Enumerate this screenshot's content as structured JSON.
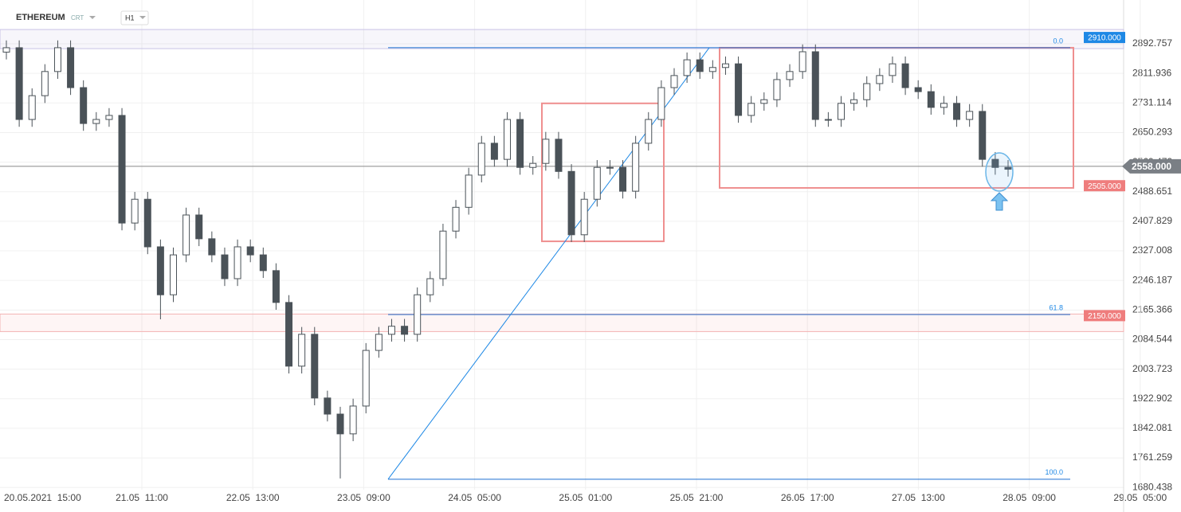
{
  "header": {
    "symbol": "ETHEREUM",
    "type": "CRT",
    "interval": "H1"
  },
  "chart_data": {
    "type": "candlestick",
    "open": [
      2870,
      2882,
      2686,
      2751,
      2817,
      2882,
      2773,
      2675,
      2686,
      2697,
      2403,
      2468,
      2338,
      2207,
      2316,
      2425,
      2360,
      2316,
      2251,
      2338,
      2316,
      2273,
      2186,
      2012,
      2099,
      1925,
      1881,
      1827,
      1903,
      2055,
      2099,
      2121,
      2099,
      2207,
      2251,
      2381,
      2446,
      2534,
      2621,
      2577,
      2686,
      2555,
      2566,
      2632,
      2544,
      2371,
      2468,
      2555,
      2555,
      2490,
      2621,
      2686,
      2773,
      2806,
      2849,
      2817,
      2828,
      2838,
      2697,
      2730,
      2740,
      2795,
      2817,
      2871,
      2686,
      2686,
      2730,
      2740,
      2784,
      2806,
      2838,
      2773,
      2762,
      2719,
      2730,
      2686,
      2708,
      2577,
      2555
    ],
    "high": [
      2902,
      2902,
      2771,
      2837,
      2902,
      2902,
      2793,
      2706,
      2717,
      2717,
      2488,
      2488,
      2358,
      2336,
      2445,
      2445,
      2380,
      2336,
      2358,
      2358,
      2336,
      2293,
      2206,
      2119,
      2119,
      1945,
      1901,
      1923,
      2075,
      2119,
      2141,
      2141,
      2227,
      2271,
      2401,
      2466,
      2554,
      2641,
      2641,
      2706,
      2706,
      2586,
      2652,
      2652,
      2564,
      2488,
      2575,
      2575,
      2575,
      2641,
      2706,
      2793,
      2826,
      2869,
      2869,
      2848,
      2858,
      2858,
      2750,
      2760,
      2815,
      2837,
      2891,
      2891,
      2706,
      2750,
      2760,
      2804,
      2826,
      2858,
      2858,
      2793,
      2782,
      2750,
      2750,
      2728,
      2728,
      2597,
      2575
    ],
    "low": [
      2850,
      2666,
      2666,
      2731,
      2797,
      2753,
      2655,
      2655,
      2666,
      2383,
      2383,
      2318,
      2140,
      2187,
      2296,
      2340,
      2296,
      2231,
      2231,
      2296,
      2253,
      2166,
      1992,
      1992,
      1905,
      1861,
      1705,
      1807,
      1883,
      2035,
      2079,
      2079,
      2079,
      2187,
      2231,
      2361,
      2426,
      2514,
      2557,
      2557,
      2535,
      2535,
      2546,
      2524,
      2351,
      2351,
      2448,
      2535,
      2470,
      2470,
      2601,
      2666,
      2753,
      2786,
      2797,
      2797,
      2808,
      2677,
      2677,
      2710,
      2720,
      2775,
      2797,
      2666,
      2666,
      2666,
      2710,
      2720,
      2764,
      2786,
      2753,
      2742,
      2699,
      2699,
      2666,
      2666,
      2557,
      2535,
      2530
    ],
    "close": [
      2882,
      2686,
      2751,
      2817,
      2882,
      2773,
      2675,
      2686,
      2697,
      2403,
      2468,
      2338,
      2207,
      2316,
      2425,
      2360,
      2316,
      2251,
      2338,
      2316,
      2273,
      2186,
      2012,
      2099,
      1925,
      1881,
      1827,
      1903,
      2055,
      2099,
      2121,
      2099,
      2207,
      2251,
      2381,
      2446,
      2534,
      2621,
      2577,
      2686,
      2555,
      2566,
      2632,
      2544,
      2371,
      2468,
      2555,
      2555,
      2490,
      2621,
      2686,
      2773,
      2806,
      2849,
      2817,
      2828,
      2838,
      2697,
      2730,
      2740,
      2795,
      2817,
      2871,
      2686,
      2686,
      2730,
      2740,
      2784,
      2806,
      2838,
      2773,
      2762,
      2719,
      2730,
      2686,
      2708,
      2577,
      2555,
      2550
    ],
    "ylim": [
      1674.4,
      3012.4
    ],
    "yticks": [
      2892.757,
      2811.936,
      2731.114,
      2650.293,
      2569.472,
      2488.651,
      2407.829,
      2327.008,
      2246.187,
      2165.366,
      2084.544,
      2003.723,
      1922.902,
      1842.081,
      1761.259,
      1680.438
    ],
    "x_labels": [
      "20.05.2021  15:00",
      "21.05  11:00",
      "22.05  13:00",
      "23.05  09:00",
      "24.05  05:00",
      "25.05  01:00",
      "25.05  21:00",
      "26.05  17:00",
      "27.05  13:00",
      "28.05  09:00",
      "29.05  05:00"
    ],
    "price_levels": [
      {
        "value": 2910,
        "label": "2910.000",
        "color": "#1e88e5"
      },
      {
        "value": 2558,
        "label": "2558.000",
        "color": "#7a7f85"
      },
      {
        "value": 2505,
        "label": "2505.000",
        "color": "#ef7d7d"
      },
      {
        "value": 2150,
        "label": "2150.000",
        "color": "#ef7d7d"
      }
    ],
    "fib_levels": [
      {
        "value": 2882,
        "label": "0.0"
      },
      {
        "value": 2153,
        "label": "61.8"
      },
      {
        "value": 1703,
        "label": "100.0"
      }
    ],
    "trend_line": [
      1703,
      2882
    ],
    "boxes": [
      {
        "top": 2730,
        "bottom": 2353
      },
      {
        "top": 2882,
        "bottom": 2499
      }
    ]
  }
}
